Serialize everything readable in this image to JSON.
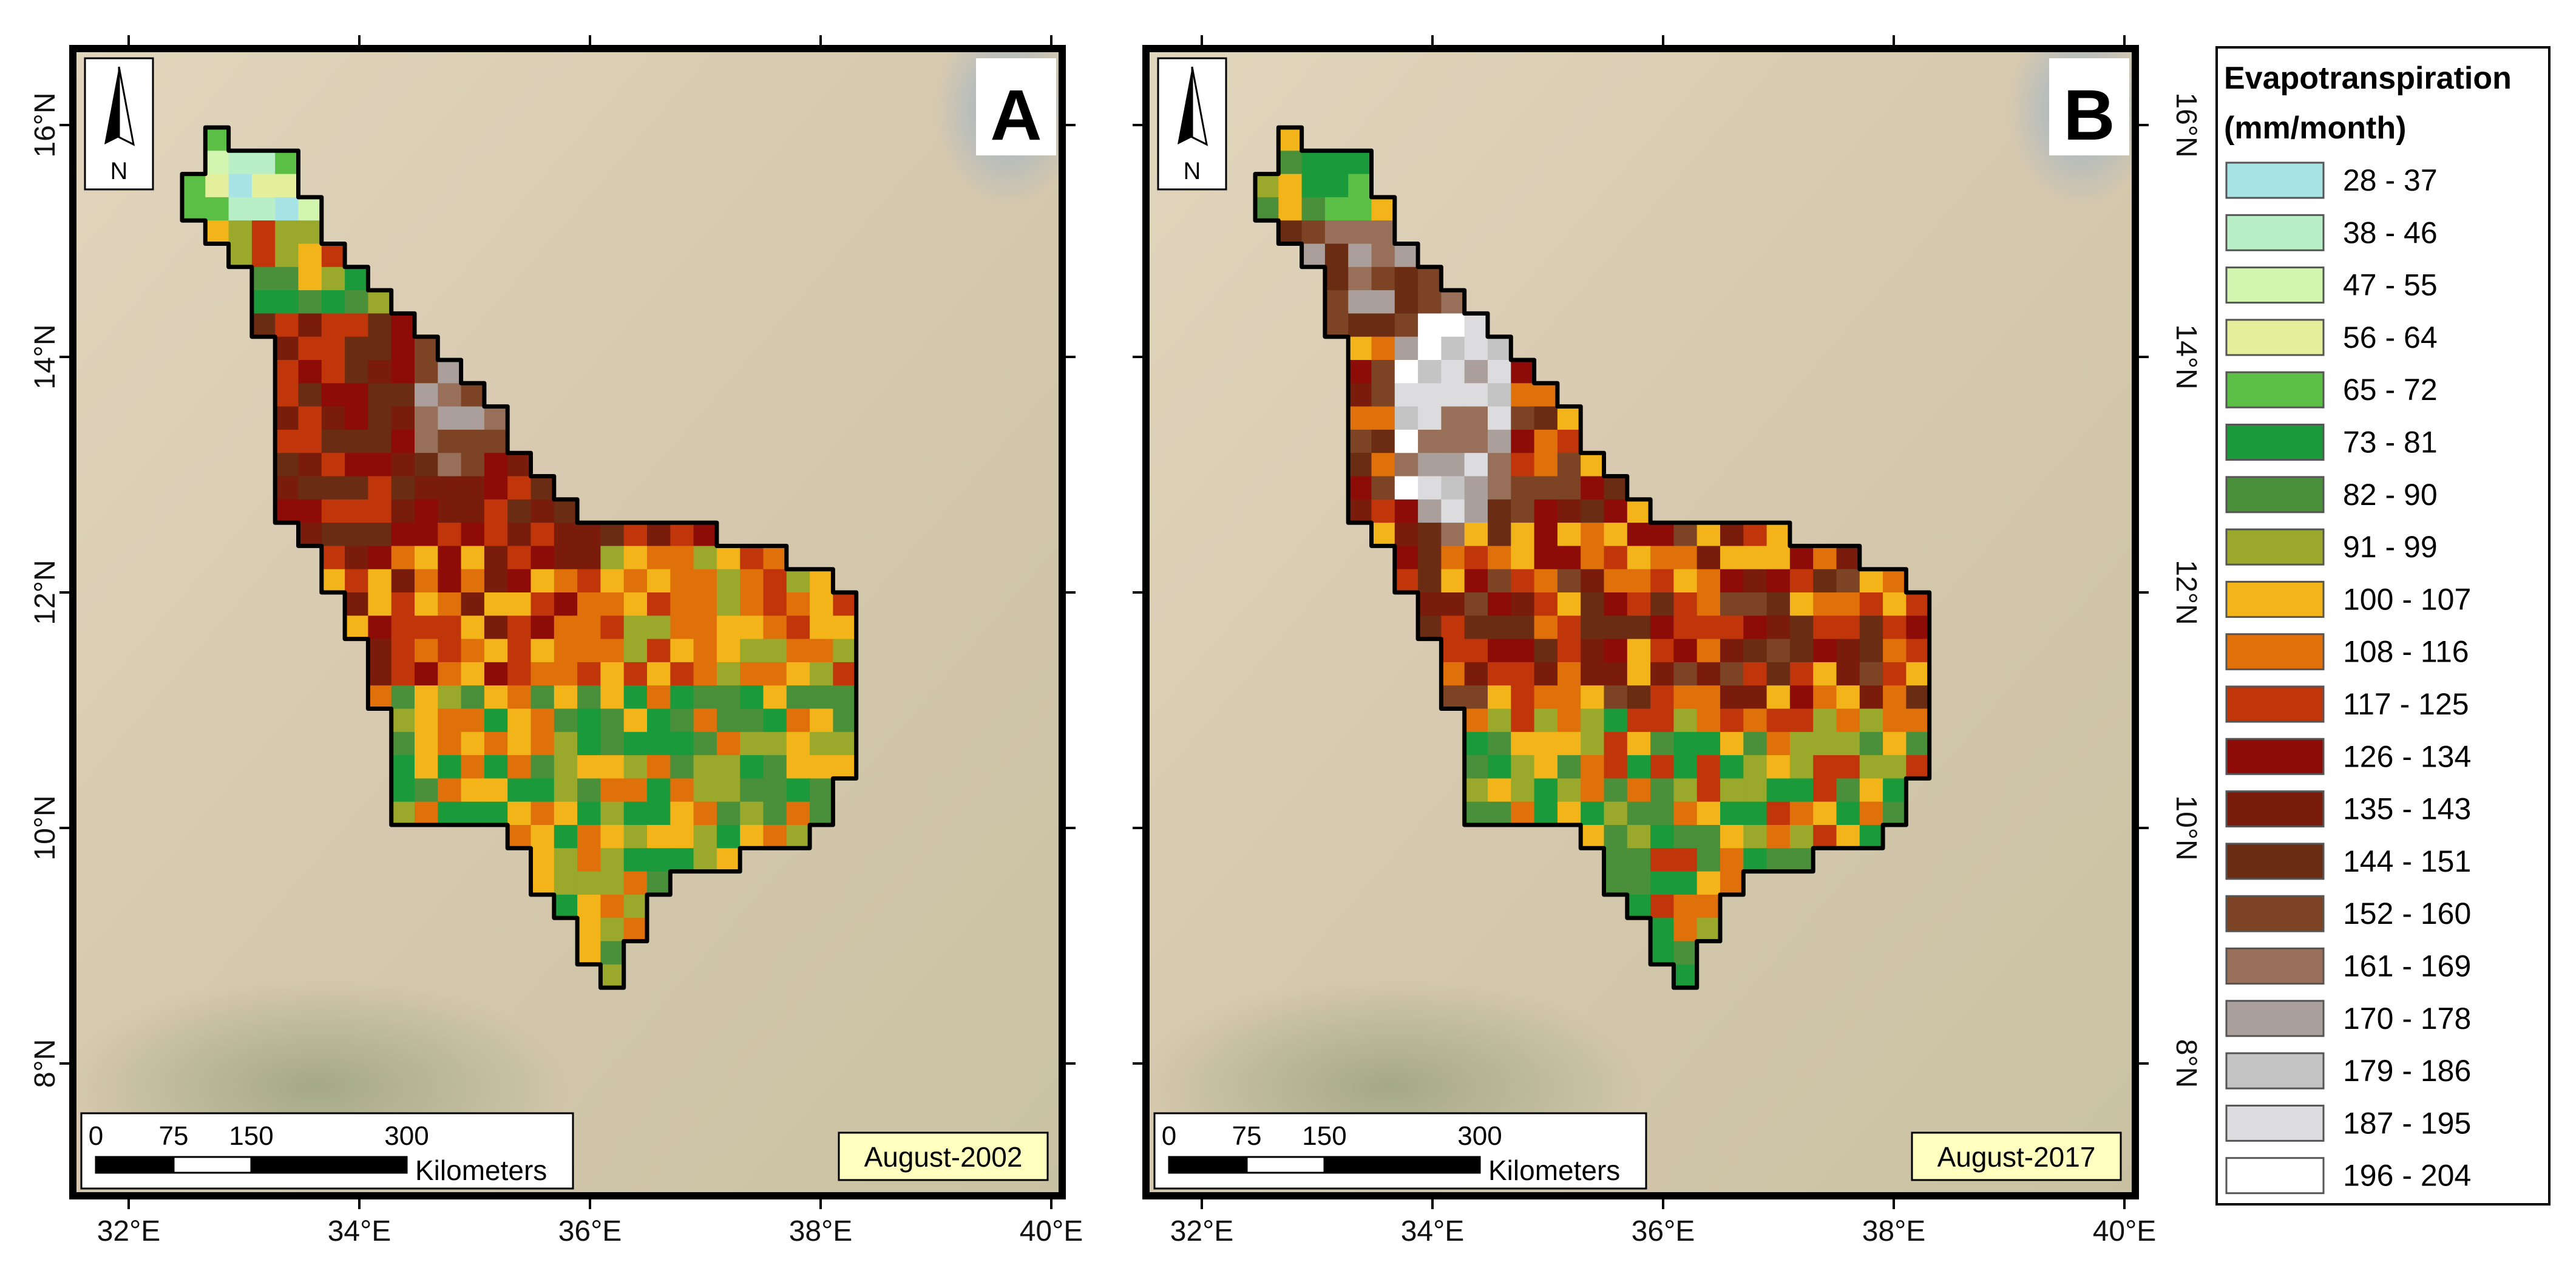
{
  "panels": [
    {
      "id": "A",
      "label": "A",
      "date": "August-2002"
    },
    {
      "id": "B",
      "label": "B",
      "date": "August-2017"
    }
  ],
  "axes": {
    "longitude_ticks": [
      "32°E",
      "34°E",
      "36°E",
      "38°E",
      "40°E"
    ],
    "latitude_ticks": [
      "16°N",
      "14°N",
      "12°N",
      "10°N",
      "8°N"
    ]
  },
  "north_arrow": {
    "label": "N"
  },
  "scale_bar": {
    "ticks": [
      "0",
      "75",
      "150",
      "300"
    ],
    "unit": "Kilometers"
  },
  "legend": {
    "title_line1": "Evapotranspiration",
    "title_line2": "(mm/month)",
    "classes": [
      {
        "label": "28 - 37",
        "color": "#a8e4e6"
      },
      {
        "label": "38 - 46",
        "color": "#b8efc6"
      },
      {
        "label": "47 - 55",
        "color": "#d2f5b0"
      },
      {
        "label": "56 - 64",
        "color": "#e4ef9c"
      },
      {
        "label": "65 - 72",
        "color": "#5cbf45"
      },
      {
        "label": "73 - 81",
        "color": "#1b9a3b"
      },
      {
        "label": "82 - 90",
        "color": "#4a8f3a"
      },
      {
        "label": "91 - 99",
        "color": "#9aa82b"
      },
      {
        "label": "100 - 107",
        "color": "#f2b418"
      },
      {
        "label": "108 - 116",
        "color": "#e0700a"
      },
      {
        "label": "117 - 125",
        "color": "#c0360a"
      },
      {
        "label": "126 - 134",
        "color": "#8e0c08"
      },
      {
        "label": "135 - 143",
        "color": "#7a1c0c"
      },
      {
        "label": "144 - 151",
        "color": "#6a2c12"
      },
      {
        "label": "152 - 160",
        "color": "#7c4424"
      },
      {
        "label": "161 - 169",
        "color": "#98705a"
      },
      {
        "label": "170 - 178",
        "color": "#aa9f9a"
      },
      {
        "label": "179 - 186",
        "color": "#c4c4c4"
      },
      {
        "label": "187 - 195",
        "color": "#dcdcde"
      },
      {
        "label": "196 - 204",
        "color": "#ffffff"
      }
    ]
  },
  "colors": {
    "background": "#d9ccb4",
    "boundary": "#000000",
    "date_box": "#ffffc0"
  }
}
